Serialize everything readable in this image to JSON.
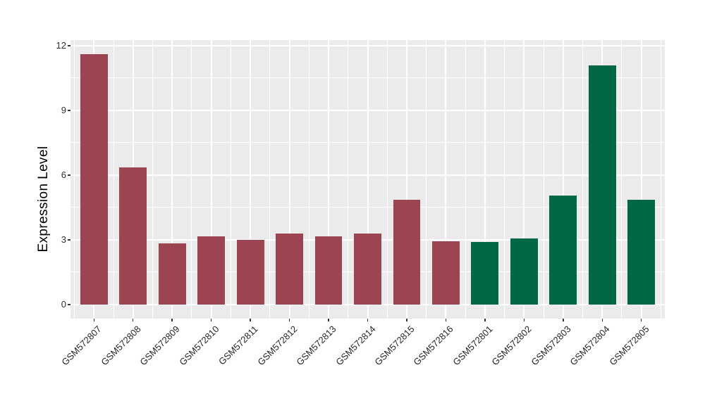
{
  "chart_data": {
    "type": "bar",
    "title": "",
    "xlabel": "",
    "ylabel": "Expression Level",
    "ylim": [
      -0.65,
      12.26
    ],
    "yticks": [
      "0",
      "3",
      "6",
      "9",
      "12"
    ],
    "ytick_values": [
      0,
      3,
      6,
      9,
      12
    ],
    "minor_ytick_values": [
      1.5,
      4.5,
      7.5,
      10.5
    ],
    "grid": "on",
    "legend": "none",
    "panel_background": "#EBEBEB",
    "grid_color": "#FFFFFF",
    "categories": [
      "GSM572807",
      "GSM572808",
      "GSM572809",
      "GSM572810",
      "GSM572811",
      "GSM572812",
      "GSM572813",
      "GSM572814",
      "GSM572815",
      "GSM572816",
      "GSM572801",
      "GSM572802",
      "GSM572803",
      "GSM572804",
      "GSM572805"
    ],
    "values": [
      11.6,
      6.35,
      2.85,
      3.15,
      3.0,
      3.3,
      3.15,
      3.3,
      4.85,
      2.95,
      2.9,
      3.05,
      5.05,
      11.1,
      4.85
    ],
    "bar_colors": [
      "#9C4452",
      "#9C4452",
      "#9C4452",
      "#9C4452",
      "#9C4452",
      "#9C4452",
      "#9C4452",
      "#9C4452",
      "#9C4452",
      "#9C4452",
      "#026747",
      "#026747",
      "#026747",
      "#026747",
      "#026747"
    ],
    "groups": [
      {
        "name": "maroon-group",
        "color": "#9C4452",
        "count": 10
      },
      {
        "name": "green-group",
        "color": "#026747",
        "count": 5
      }
    ]
  }
}
